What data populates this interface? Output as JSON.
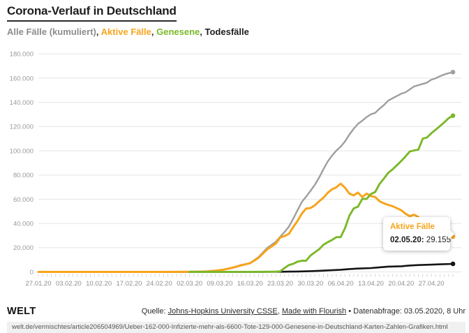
{
  "title": "Corona-Verlauf in Deutschland",
  "legend": {
    "separator": ", ",
    "items": [
      {
        "label": "Alle Fälle (kumuliert)",
        "color": "#8c8c8c"
      },
      {
        "label": "Aktive Fälle",
        "color": "#F7A41C"
      },
      {
        "label": "Genesene",
        "color": "#7BB829"
      },
      {
        "label": "Todesfälle",
        "color": "#1d1d1d"
      }
    ]
  },
  "tooltip": {
    "series": "Aktive Fälle",
    "color": "#F7A41C",
    "date_label": "02.05.20:",
    "value": " 29.155"
  },
  "footer": {
    "logo": "WELT",
    "source_prefix": "Quelle: ",
    "link1": "Johns-Hopkins University CSSE",
    "sep": ", ",
    "link2": "Made with Flourish",
    "suffix": " • Datenabfrage: 03.05.2020, 8 Uhr"
  },
  "url_bar": "welt.de/vermischtes/article206504969/Ueber-162-000-Infizierte-mehr-als-6600-Tote-129-000-Genesene-in-Deutschland-Karten-Zahlen-Grafiken.html",
  "chart_data": {
    "type": "line",
    "x_start_date": "27.01.20",
    "x_end_date": "02.05.20",
    "x_tick_labels": [
      "27.01.20",
      "03.02.20",
      "10.02.20",
      "17.02.20",
      "24.02.20",
      "02.03.20",
      "09.03.20",
      "16.03.20",
      "23.03.20",
      "30.03.20",
      "06.04.20",
      "13.04.20",
      "20.04.20",
      "27.04.20"
    ],
    "y_tick_labels": [
      "0",
      "20.000",
      "40.000",
      "60.000",
      "80.000",
      "100.000",
      "120.000",
      "140.000",
      "160.000",
      "180.000"
    ],
    "ylim": [
      0,
      180000
    ],
    "x_days_total": 96,
    "grid": "horizontal-only",
    "legend_position": "subtitle-inline",
    "series": [
      {
        "name": "Alle Fälle (kumuliert)",
        "color": "#9E9E9E",
        "points": [
          [
            0,
            1
          ],
          [
            7,
            12
          ],
          [
            14,
            14
          ],
          [
            21,
            16
          ],
          [
            28,
            16
          ],
          [
            33,
            48
          ],
          [
            35,
            159
          ],
          [
            37,
            262
          ],
          [
            39,
            482
          ],
          [
            41,
            1040
          ],
          [
            43,
            2078
          ],
          [
            45,
            3675
          ],
          [
            47,
            5795
          ],
          [
            49,
            7272
          ],
          [
            51,
            12327
          ],
          [
            53,
            19848
          ],
          [
            55,
            24873
          ],
          [
            56,
            29056
          ],
          [
            57,
            32986
          ],
          [
            58,
            37323
          ],
          [
            59,
            43938
          ],
          [
            60,
            50871
          ],
          [
            61,
            57695
          ],
          [
            62,
            62095
          ],
          [
            63,
            66885
          ],
          [
            64,
            71808
          ],
          [
            65,
            77872
          ],
          [
            66,
            84794
          ],
          [
            67,
            91159
          ],
          [
            68,
            96092
          ],
          [
            69,
            100123
          ],
          [
            70,
            103374
          ],
          [
            71,
            107663
          ],
          [
            72,
            113296
          ],
          [
            73,
            118181
          ],
          [
            74,
            122171
          ],
          [
            75,
            124908
          ],
          [
            76,
            127854
          ],
          [
            77,
            130072
          ],
          [
            78,
            131359
          ],
          [
            79,
            134753
          ],
          [
            80,
            137698
          ],
          [
            81,
            141397
          ],
          [
            82,
            143342
          ],
          [
            83,
            145184
          ],
          [
            84,
            147065
          ],
          [
            85,
            148291
          ],
          [
            86,
            150648
          ],
          [
            87,
            153129
          ],
          [
            88,
            154175
          ],
          [
            89,
            155193
          ],
          [
            90,
            156337
          ],
          [
            91,
            158758
          ],
          [
            92,
            159912
          ],
          [
            93,
            161539
          ],
          [
            94,
            163009
          ],
          [
            95,
            164077
          ],
          [
            96,
            164967
          ]
        ]
      },
      {
        "name": "Todesfälle",
        "color": "#141414",
        "points": [
          [
            0,
            0
          ],
          [
            35,
            0
          ],
          [
            42,
            2
          ],
          [
            45,
            9
          ],
          [
            49,
            17
          ],
          [
            52,
            44
          ],
          [
            56,
            123
          ],
          [
            58,
            206
          ],
          [
            60,
            342
          ],
          [
            63,
            645
          ],
          [
            65,
            920
          ],
          [
            67,
            1275
          ],
          [
            70,
            1810
          ],
          [
            72,
            2349
          ],
          [
            74,
            2767
          ],
          [
            77,
            3194
          ],
          [
            79,
            3804
          ],
          [
            81,
            4352
          ],
          [
            84,
            4642
          ],
          [
            86,
            5279
          ],
          [
            88,
            5640
          ],
          [
            91,
            5976
          ],
          [
            93,
            6288
          ],
          [
            96,
            6649
          ]
        ]
      },
      {
        "name": "Aktive Fälle",
        "color": "#F7A41C",
        "points": [
          [
            0,
            1
          ],
          [
            7,
            12
          ],
          [
            14,
            13
          ],
          [
            21,
            14
          ],
          [
            28,
            16
          ],
          [
            33,
            46
          ],
          [
            35,
            143
          ],
          [
            37,
            240
          ],
          [
            39,
            440
          ],
          [
            41,
            980
          ],
          [
            43,
            1950
          ],
          [
            45,
            3460
          ],
          [
            47,
            5450
          ],
          [
            49,
            7150
          ],
          [
            51,
            11700
          ],
          [
            53,
            18600
          ],
          [
            55,
            23400
          ],
          [
            56,
            28480
          ],
          [
            57,
            29586
          ],
          [
            58,
            31444
          ],
          [
            59,
            37013
          ],
          [
            60,
            42048
          ],
          [
            61,
            48051
          ],
          [
            62,
            52351
          ],
          [
            63,
            52740
          ],
          [
            64,
            54933
          ],
          [
            65,
            58252
          ],
          [
            66,
            61247
          ],
          [
            67,
            65309
          ],
          [
            68,
            68248
          ],
          [
            69,
            69839
          ],
          [
            70,
            72864
          ],
          [
            71,
            69566
          ],
          [
            72,
            64647
          ],
          [
            73,
            63167
          ],
          [
            74,
            65491
          ],
          [
            75,
            61872
          ],
          [
            76,
            64683
          ],
          [
            77,
            62578
          ],
          [
            78,
            61864
          ],
          [
            79,
            58349
          ],
          [
            80,
            56646
          ],
          [
            81,
            55245
          ],
          [
            82,
            54283
          ],
          [
            83,
            52598
          ],
          [
            84,
            50923
          ],
          [
            85,
            48143
          ],
          [
            86,
            45969
          ],
          [
            87,
            47254
          ],
          [
            88,
            45235
          ],
          [
            89,
            41796
          ],
          [
            90,
            40660
          ],
          [
            91,
            38282
          ],
          [
            92,
            36386
          ],
          [
            93,
            34851
          ],
          [
            94,
            33042
          ],
          [
            95,
            30602
          ],
          [
            96,
            29155
          ]
        ]
      },
      {
        "name": "Genesene",
        "color": "#7BB829",
        "points": [
          [
            35,
            0
          ],
          [
            49,
            70
          ],
          [
            52,
            110
          ],
          [
            55,
            220
          ],
          [
            56,
            453
          ],
          [
            57,
            3243
          ],
          [
            58,
            5673
          ],
          [
            59,
            6658
          ],
          [
            60,
            8481
          ],
          [
            61,
            9211
          ],
          [
            62,
            9211
          ],
          [
            63,
            13500
          ],
          [
            64,
            16100
          ],
          [
            65,
            18700
          ],
          [
            66,
            22440
          ],
          [
            67,
            24575
          ],
          [
            68,
            26400
          ],
          [
            69,
            28700
          ],
          [
            70,
            28700
          ],
          [
            71,
            36081
          ],
          [
            72,
            46300
          ],
          [
            73,
            52407
          ],
          [
            74,
            53913
          ],
          [
            75,
            60300
          ],
          [
            76,
            60300
          ],
          [
            77,
            64300
          ],
          [
            78,
            66000
          ],
          [
            79,
            72600
          ],
          [
            80,
            77000
          ],
          [
            81,
            81800
          ],
          [
            82,
            84600
          ],
          [
            83,
            88000
          ],
          [
            84,
            91500
          ],
          [
            85,
            95200
          ],
          [
            86,
            99400
          ],
          [
            87,
            100300
          ],
          [
            88,
            101000
          ],
          [
            89,
            110000
          ],
          [
            90,
            111000
          ],
          [
            91,
            114500
          ],
          [
            92,
            117400
          ],
          [
            93,
            120400
          ],
          [
            94,
            123500
          ],
          [
            95,
            126900
          ],
          [
            96,
            129000
          ]
        ]
      }
    ],
    "end_labels": {
      "Alle Fälle (kumuliert)": 164967,
      "Genesene": 129000,
      "Aktive Fälle": 29155,
      "Todesfälle": 6649
    }
  }
}
